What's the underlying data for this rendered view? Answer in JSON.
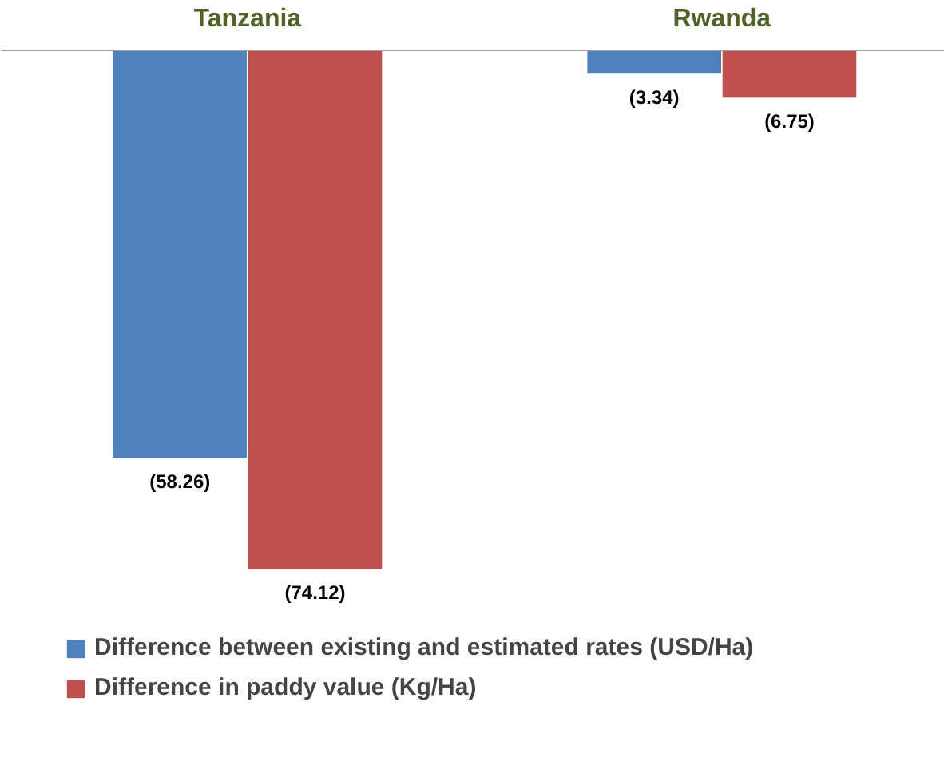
{
  "chart_data": {
    "type": "bar",
    "categories": [
      "Tanzania",
      "Rwanda"
    ],
    "series": [
      {
        "name": "Difference between existing and estimated rates (USD/Ha)",
        "color": "#4f81bd",
        "values": [
          -58.26,
          -3.34
        ],
        "value_labels": [
          "(58.26)",
          "(3.34)"
        ]
      },
      {
        "name": "Difference in paddy value (Kg/Ha)",
        "color": "#c0504d",
        "values": [
          -74.12,
          -6.75
        ],
        "value_labels": [
          "(74.12)",
          "(6.75)"
        ]
      }
    ],
    "legend": "bottom"
  }
}
